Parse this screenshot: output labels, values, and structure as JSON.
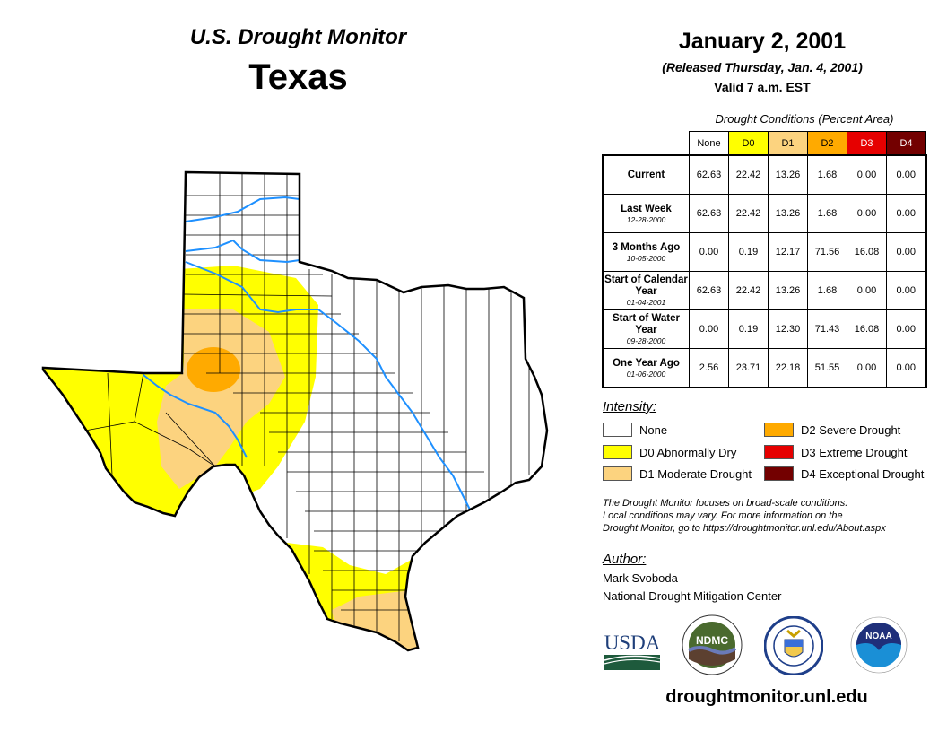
{
  "header": {
    "product": "U.S. Drought Monitor",
    "region": "Texas",
    "date": "January 2, 2001",
    "released": "(Released Thursday, Jan. 4, 2001)",
    "valid": "Valid 7 a.m. EST"
  },
  "conditions_table": {
    "caption": "Drought Conditions (Percent Area)",
    "columns": [
      {
        "label": "None",
        "color": "#ffffff",
        "text_color": "#000000"
      },
      {
        "label": "D0",
        "color": "#ffff00",
        "text_color": "#000000"
      },
      {
        "label": "D1",
        "color": "#fcd37f",
        "text_color": "#000000"
      },
      {
        "label": "D2",
        "color": "#ffaa00",
        "text_color": "#000000"
      },
      {
        "label": "D3",
        "color": "#e60000",
        "text_color": "#ffffff"
      },
      {
        "label": "D4",
        "color": "#730000",
        "text_color": "#ffffff"
      }
    ],
    "rows": [
      {
        "label": "Current",
        "date": "",
        "values": [
          "62.63",
          "22.42",
          "13.26",
          "1.68",
          "0.00",
          "0.00"
        ]
      },
      {
        "label": "Last Week",
        "date": "12-28-2000",
        "values": [
          "62.63",
          "22.42",
          "13.26",
          "1.68",
          "0.00",
          "0.00"
        ]
      },
      {
        "label": "3 Months Ago",
        "date": "10-05-2000",
        "values": [
          "0.00",
          "0.19",
          "12.17",
          "71.56",
          "16.08",
          "0.00"
        ]
      },
      {
        "label": "Start of Calendar Year",
        "date": "01-04-2001",
        "values": [
          "62.63",
          "22.42",
          "13.26",
          "1.68",
          "0.00",
          "0.00"
        ]
      },
      {
        "label": "Start of Water Year",
        "date": "09-28-2000",
        "values": [
          "0.00",
          "0.19",
          "12.30",
          "71.43",
          "16.08",
          "0.00"
        ]
      },
      {
        "label": "One Year Ago",
        "date": "01-06-2000",
        "values": [
          "2.56",
          "23.71",
          "22.18",
          "51.55",
          "0.00",
          "0.00"
        ]
      }
    ]
  },
  "legend": {
    "title": "Intensity:",
    "items": [
      {
        "label": "None",
        "color": "#ffffff"
      },
      {
        "label": "D0 Abnormally Dry",
        "color": "#ffff00"
      },
      {
        "label": "D1 Moderate Drought",
        "color": "#fcd37f"
      },
      {
        "label": "D2 Severe Drought",
        "color": "#ffaa00"
      },
      {
        "label": "D3 Extreme Drought",
        "color": "#e60000"
      },
      {
        "label": "D4 Exceptional Drought",
        "color": "#730000"
      }
    ]
  },
  "note": [
    "The Drought Monitor focuses on broad-scale conditions.",
    "Local conditions may vary. For more information on the",
    "Drought Monitor, go to https://droughtmonitor.unl.edu/About.aspx"
  ],
  "author": {
    "title": "Author:",
    "name": "Mark Svoboda",
    "org": "National Drought Mitigation Center"
  },
  "logos": {
    "usda": "USDA",
    "ndmc": "NDMC",
    "noaa": "NOAA"
  },
  "footer_url": "droughtmonitor.unl.edu",
  "map_colors": {
    "river": "#1e90ff",
    "border": "#000000"
  }
}
